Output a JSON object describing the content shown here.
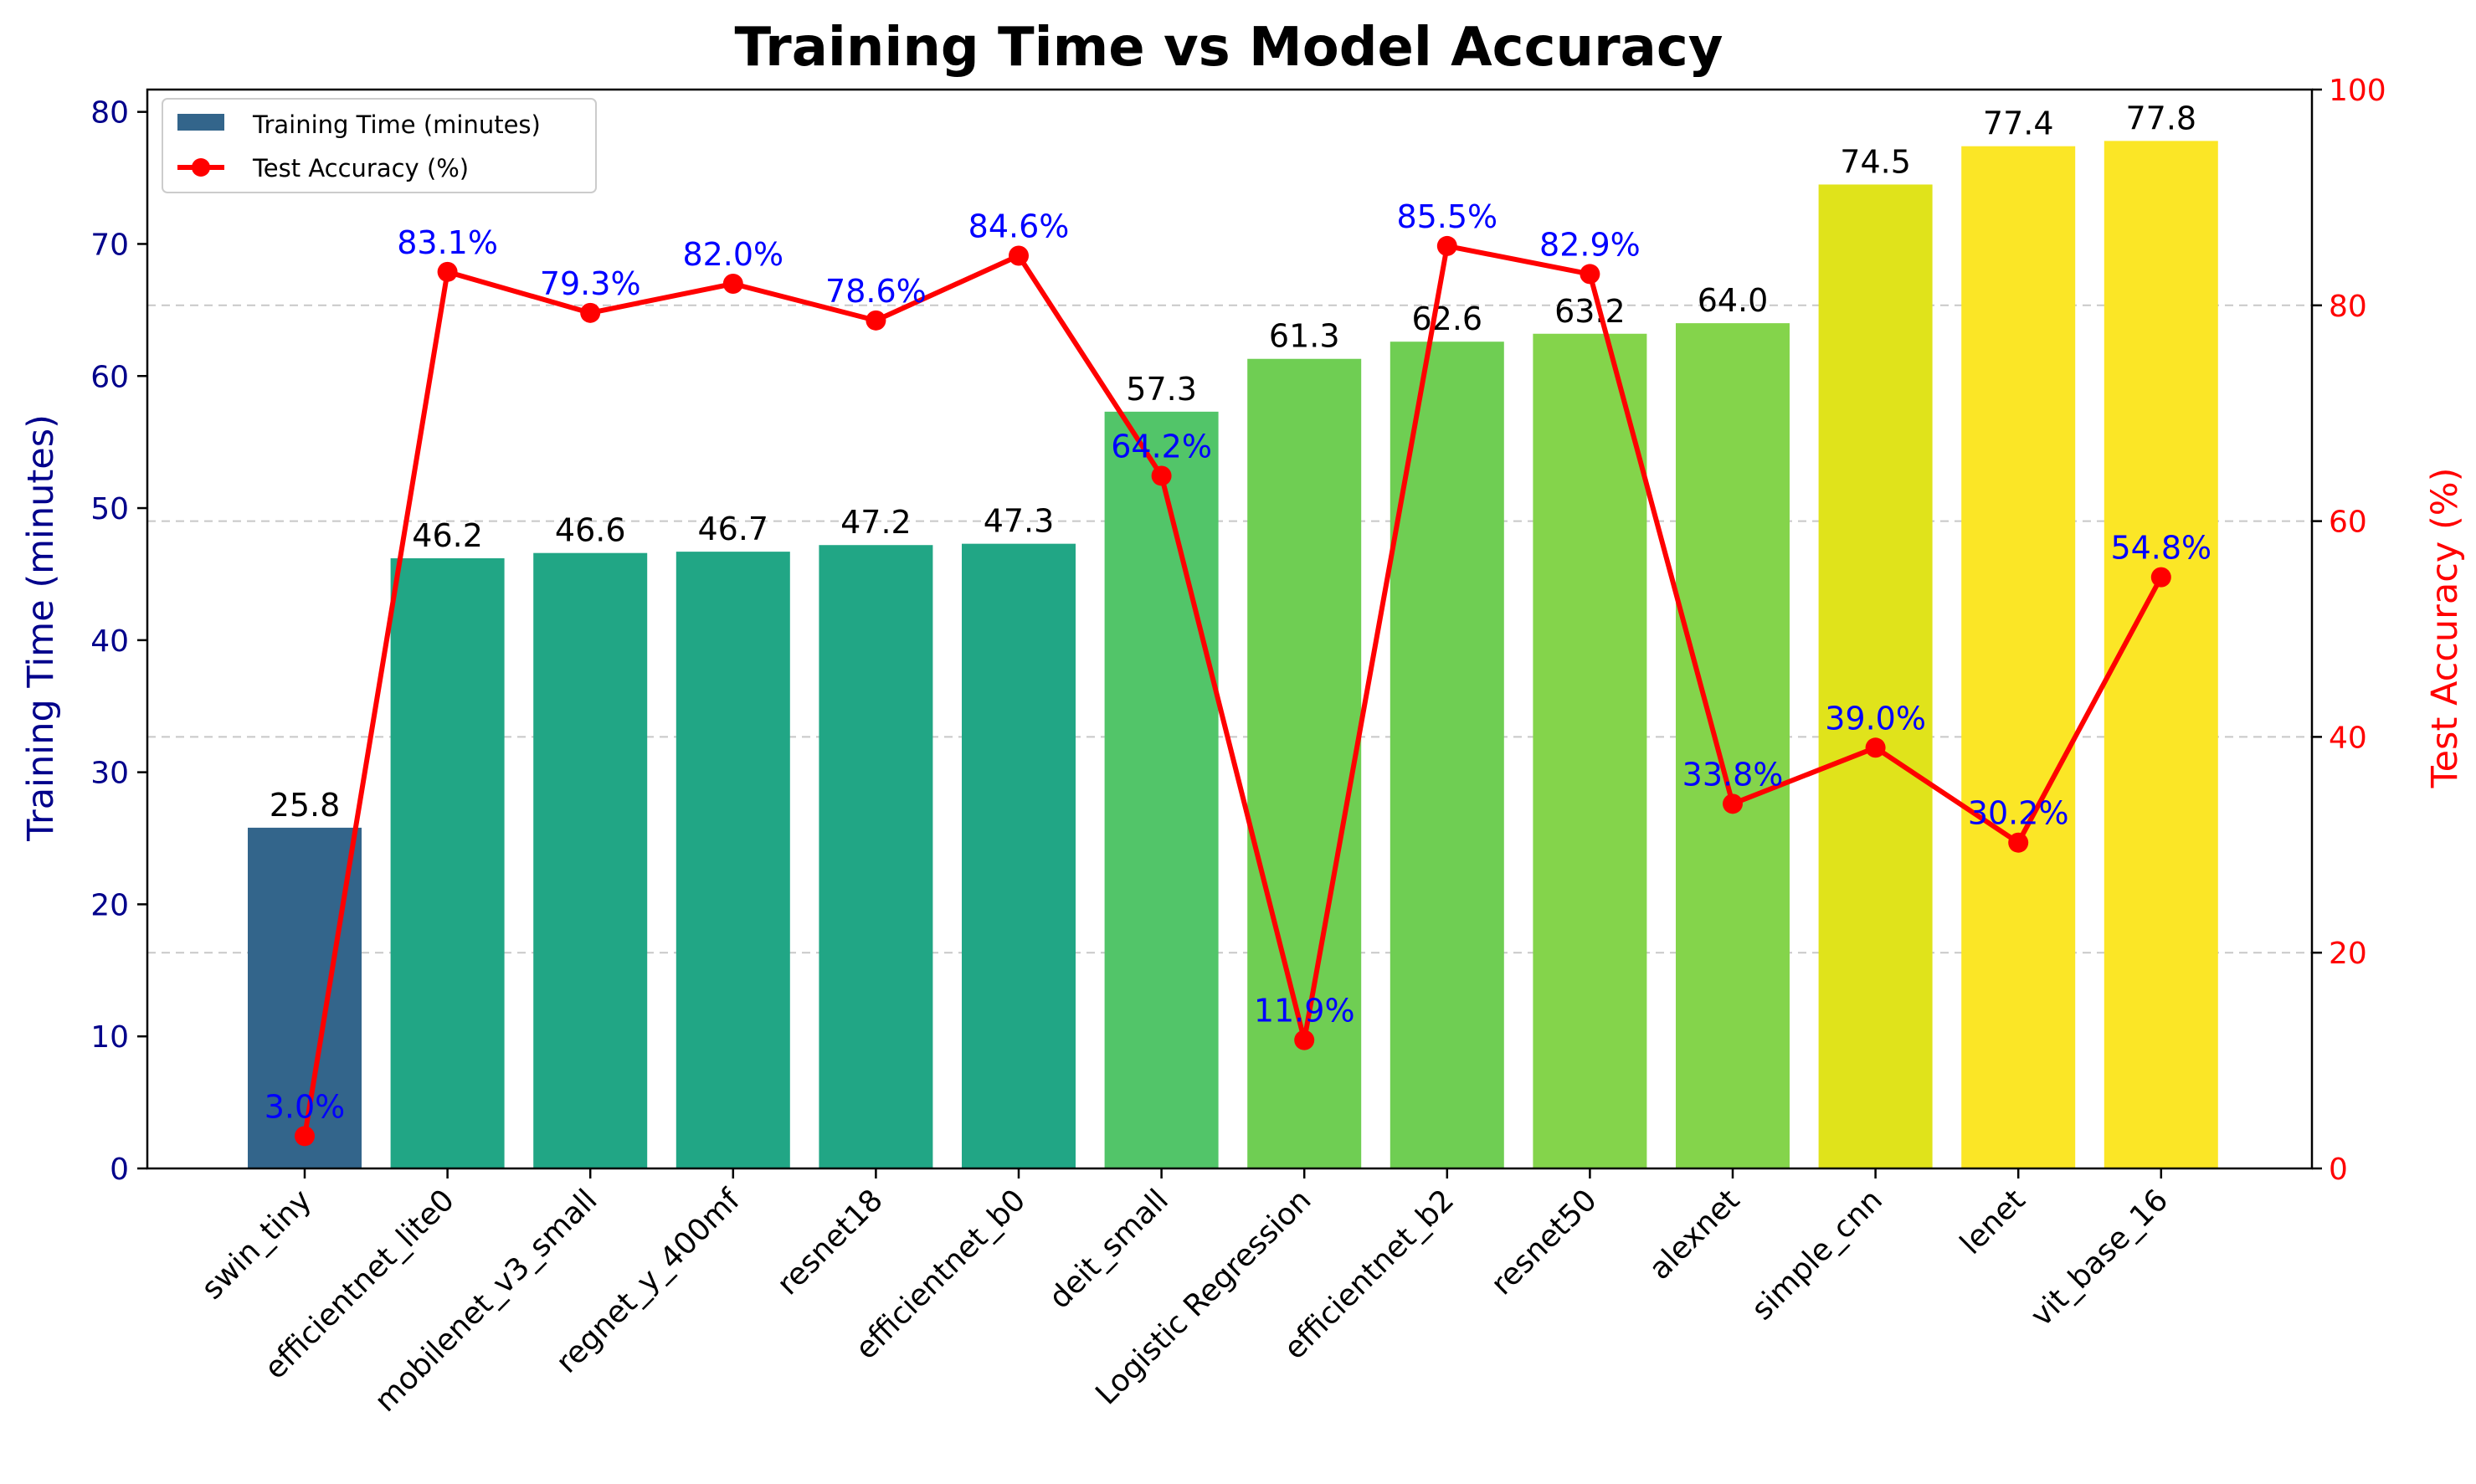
{
  "chart_data": {
    "type": "bar",
    "title": "Training Time vs Model Accuracy",
    "categories": [
      "swin_tiny",
      "efficientnet_lite0",
      "mobilenet_v3_small",
      "regnet_y_400mf",
      "resnet18",
      "efficientnet_b0",
      "deit_small",
      "Logistic Regression",
      "efficientnet_b2",
      "resnet50",
      "alexnet",
      "simple_cnn",
      "lenet",
      "vit_base_16"
    ],
    "series": [
      {
        "name": "Training Time (minutes)",
        "type": "bar",
        "axis": "left",
        "values": [
          25.8,
          46.2,
          46.6,
          46.7,
          47.2,
          47.3,
          57.3,
          61.3,
          62.6,
          63.2,
          64.0,
          74.5,
          77.4,
          77.8
        ],
        "value_labels": [
          "25.8",
          "46.2",
          "46.6",
          "46.7",
          "47.2",
          "47.3",
          "57.3",
          "61.3",
          "62.6",
          "63.2",
          "64.0",
          "74.5",
          "77.4",
          "77.8"
        ],
        "colors": [
          "#33658b",
          "#21a685",
          "#21a685",
          "#21a685",
          "#21a685",
          "#21a685",
          "#52c569",
          "#6fce53",
          "#6fce53",
          "#84d44b",
          "#84d44b",
          "#e0e31b",
          "#fbe626",
          "#fbe626"
        ]
      },
      {
        "name": "Test Accuracy (%)",
        "type": "line",
        "axis": "right",
        "color": "#ff0000",
        "label_color": "#0000ff",
        "values": [
          3.0,
          83.1,
          79.3,
          82.0,
          78.6,
          84.6,
          64.2,
          11.9,
          85.5,
          82.9,
          33.8,
          39.0,
          30.2,
          54.8
        ],
        "value_labels": [
          "3.0%",
          "83.1%",
          "79.3%",
          "82.0%",
          "78.6%",
          "84.6%",
          "64.2%",
          "11.9%",
          "85.5%",
          "82.9%",
          "33.8%",
          "39.0%",
          "30.2%",
          "54.8%"
        ]
      }
    ],
    "y_left": {
      "label": "Training Time (minutes)",
      "color": "#00008b",
      "range": [
        0,
        81.69
      ],
      "ticks": [
        0,
        10,
        20,
        30,
        40,
        50,
        60,
        70,
        80
      ],
      "tick_labels": [
        "0",
        "10",
        "20",
        "30",
        "40",
        "50",
        "60",
        "70",
        "80"
      ]
    },
    "y_right": {
      "label": "Test Accuracy (%)",
      "color": "#ff0000",
      "range": [
        0,
        100
      ],
      "ticks": [
        0,
        20,
        40,
        60,
        80,
        100
      ],
      "tick_labels": [
        "0",
        "20",
        "40",
        "60",
        "80",
        "100"
      ]
    },
    "grid": {
      "horizontal": true,
      "style": "dashed",
      "axis": "right"
    },
    "legend": {
      "position": "top-left"
    }
  }
}
